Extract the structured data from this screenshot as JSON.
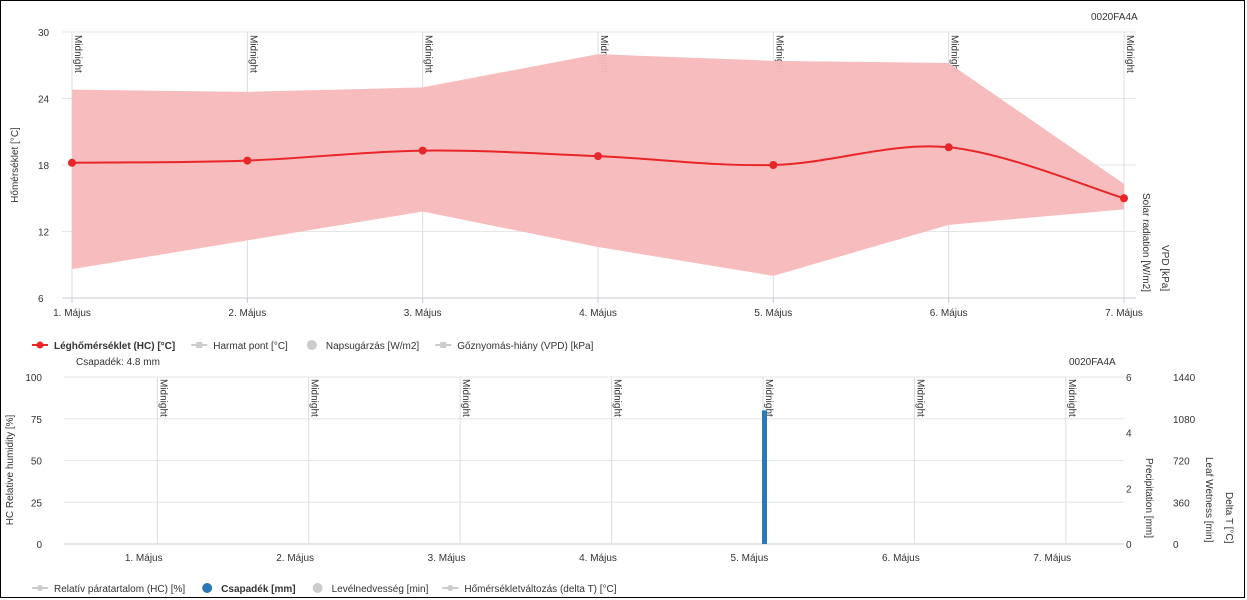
{
  "chart_data": [
    {
      "type": "line",
      "id_label": "0020FA4A",
      "categories": [
        "1. Május",
        "2. Május",
        "3. Május",
        "4. Május",
        "5. Május",
        "6. Május",
        "7. Május"
      ],
      "ylabel": "Hőmérséklet [°C]",
      "ylim": [
        6,
        30
      ],
      "yticks": [
        6,
        12,
        18,
        24,
        30
      ],
      "right_axis_labels": [
        "Solar radiation [W/m2]",
        "VPD [kPa]"
      ],
      "midnight_label": "Midnight",
      "grid": true,
      "series": [
        {
          "name": "Léghőmérséklet (HC) [°C]",
          "values": [
            18.2,
            18.4,
            19.3,
            18.8,
            18.0,
            19.6,
            15.0
          ],
          "min": [
            8.6,
            11.2,
            13.8,
            10.6,
            8.0,
            12.6,
            14.0
          ],
          "max": [
            24.8,
            24.6,
            25.0,
            28.0,
            27.4,
            27.2,
            16.3
          ],
          "color": "#e8262a",
          "band_color": "#f7b8bb"
        }
      ],
      "legend": [
        {
          "label": "Léghőmérséklet (HC) [°C]",
          "active": true,
          "color": "#e8262a"
        },
        {
          "label": "Harmat pont [°C]",
          "active": false,
          "color": "#cccccc"
        },
        {
          "label": "Napsugárzás [W/m2]",
          "active": false,
          "color": "#cccccc"
        },
        {
          "label": "Gőznyomás-hiány (VPD) [kPa]",
          "active": false,
          "color": "#cccccc"
        }
      ]
    },
    {
      "type": "bar",
      "id_label": "0020FA4A",
      "annotation": "Csapadék: 4.8 mm",
      "categories": [
        "1. Május",
        "2. Május",
        "3. Május",
        "4. Május",
        "5. Május",
        "6. Május",
        "7. Május"
      ],
      "ylabel": "HC Relative humidity [%]",
      "ylim": [
        0,
        100
      ],
      "yticks": [
        0,
        25,
        50,
        75,
        100
      ],
      "right_axis_1": {
        "label": "Precipitation [mm]",
        "ticks": [
          0,
          2,
          4,
          6
        ]
      },
      "right_axis_2": {
        "label": "Leaf Wetness [min]",
        "ticks": [
          0,
          360,
          720,
          1080,
          1440
        ]
      },
      "right_axis_3_label": "Delta T [°C]",
      "midnight_label": "Midnight",
      "series": [
        {
          "name": "Csapadék [mm]",
          "x": [
            "5. Május"
          ],
          "values": [
            4.8
          ],
          "color": "#2a78b8"
        }
      ],
      "legend": [
        {
          "label": "Relatív páratartalom (HC) [%]",
          "active": false,
          "color": "#cccccc"
        },
        {
          "label": "Csapadék [mm]",
          "active": true,
          "color": "#2a78b8"
        },
        {
          "label": "Levélnedvesség [min]",
          "active": false,
          "color": "#cccccc"
        },
        {
          "label": "Hőmérsékletváltozás (delta T) [°C]",
          "active": false,
          "color": "#cccccc"
        }
      ]
    }
  ]
}
